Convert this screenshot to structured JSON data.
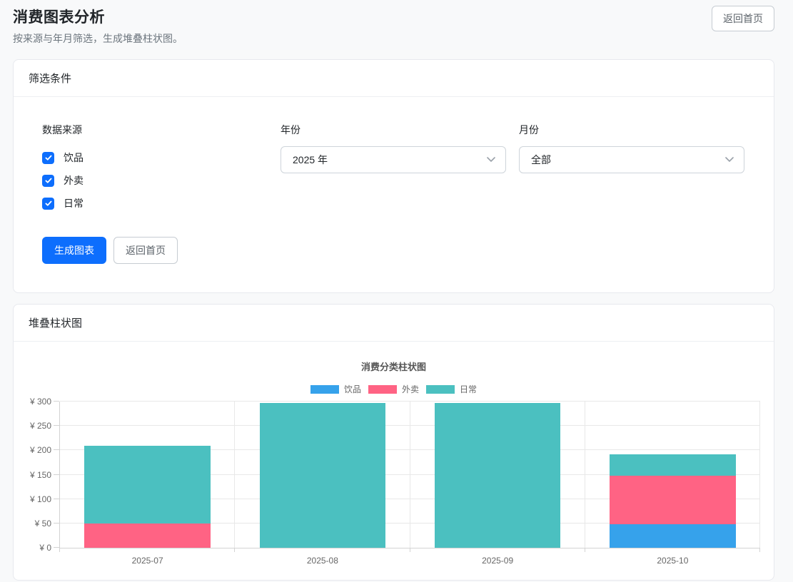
{
  "page": {
    "title": "消费图表分析",
    "subtitle": "按来源与年月筛选，生成堆叠柱状图。",
    "back_button": "返回首页"
  },
  "filters": {
    "card_title": "筛选条件",
    "source_label": "数据来源",
    "sources": [
      {
        "label": "饮品",
        "checked": true
      },
      {
        "label": "外卖",
        "checked": true
      },
      {
        "label": "日常",
        "checked": true
      }
    ],
    "year": {
      "label": "年份",
      "value": "2025 年"
    },
    "month": {
      "label": "月份",
      "value": "全部"
    },
    "generate_button": "生成图表",
    "back_button": "返回首页"
  },
  "chart_section": {
    "card_title": "堆叠柱状图"
  },
  "chart_data": {
    "type": "bar",
    "stacked": true,
    "title": "消费分类柱状图",
    "categories": [
      "2025-07",
      "2025-08",
      "2025-09",
      "2025-10"
    ],
    "series": [
      {
        "name": "饮品",
        "color": "#36A2EB",
        "values": [
          0,
          0,
          0,
          48
        ]
      },
      {
        "name": "外卖",
        "color": "#FF6384",
        "values": [
          50,
          0,
          0,
          100
        ]
      },
      {
        "name": "日常",
        "color": "#4BC0C0",
        "values": [
          160,
          297,
          297,
          44
        ]
      }
    ],
    "ylim": [
      0,
      300
    ],
    "y_step": 50,
    "y_tick_prefix": "¥ ",
    "legend_position": "top",
    "grid": true
  },
  "colors": {
    "accent_blue": "#0d6efd",
    "series_blue": "#36A2EB",
    "series_pink": "#FF6384",
    "series_teal": "#4BC0C0"
  }
}
